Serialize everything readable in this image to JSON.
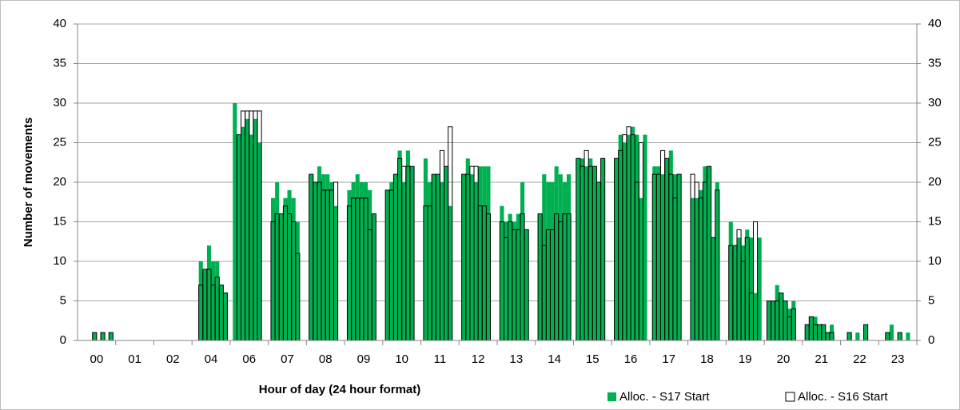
{
  "chart_data": {
    "type": "bar",
    "y_label": "Number of movements",
    "x_label": "Hour of day (24 hour format)",
    "categories": [
      "00",
      "01",
      "02",
      "04",
      "06",
      "07",
      "08",
      "09",
      "10",
      "11",
      "12",
      "13",
      "14",
      "15",
      "16",
      "17",
      "18",
      "19",
      "20",
      "21",
      "22",
      "23"
    ],
    "series": [
      {
        "name": "Alloc. - S17 Start",
        "color": "#00b050",
        "style": "filled",
        "values": [
          [
            null,
            null,
            null,
            1,
            null,
            1,
            null,
            1
          ],
          [
            null,
            null,
            null,
            null,
            null,
            null,
            null,
            null
          ],
          [
            null,
            null,
            null,
            null,
            null,
            null,
            null,
            null
          ],
          [
            null,
            10,
            9,
            12,
            10,
            10,
            7,
            6
          ],
          [
            30,
            26,
            27,
            28,
            26,
            28,
            25,
            null
          ],
          [
            18,
            20,
            16,
            18,
            19,
            18,
            15,
            null
          ],
          [
            21,
            20,
            22,
            21,
            21,
            20,
            17,
            null
          ],
          [
            19,
            20,
            21,
            20,
            20,
            19,
            16,
            null
          ],
          [
            19,
            20,
            21,
            24,
            20,
            24,
            22,
            null
          ],
          [
            23,
            20,
            21,
            21,
            20,
            22,
            17,
            null
          ],
          [
            21,
            23,
            21,
            20,
            22,
            22,
            22,
            null
          ],
          [
            17,
            15,
            16,
            15,
            16,
            20,
            14,
            null
          ],
          [
            16,
            21,
            20,
            20,
            22,
            21,
            20,
            21
          ],
          [
            23,
            23,
            22,
            23,
            22,
            20,
            23,
            null
          ],
          [
            23,
            26,
            25,
            26,
            27,
            26,
            18,
            26
          ],
          [
            22,
            22,
            21,
            23,
            24,
            21,
            21,
            null
          ],
          [
            18,
            18,
            19,
            22,
            22,
            13,
            20,
            null
          ],
          [
            15,
            12,
            13,
            12,
            14,
            13,
            6,
            13
          ],
          [
            5,
            5,
            7,
            6,
            5,
            4,
            5,
            null
          ],
          [
            2,
            3,
            3,
            2,
            2,
            1,
            2,
            null
          ],
          [
            null,
            1,
            null,
            1,
            null,
            2,
            null,
            null
          ],
          [
            null,
            1,
            2,
            null,
            1,
            null,
            1,
            null
          ]
        ]
      },
      {
        "name": "Alloc. - S16 Start",
        "color": "#000000",
        "style": "outline",
        "values": [
          [
            null,
            null,
            null,
            1,
            null,
            1,
            null,
            1
          ],
          [
            null,
            null,
            null,
            null,
            null,
            null,
            null,
            null
          ],
          [
            null,
            null,
            null,
            null,
            null,
            null,
            null,
            null
          ],
          [
            null,
            7,
            9,
            9,
            7,
            8,
            7,
            6
          ],
          [
            null,
            26,
            29,
            29,
            29,
            29,
            29,
            null
          ],
          [
            15,
            16,
            16,
            17,
            16,
            15,
            11,
            null
          ],
          [
            21,
            20,
            20,
            19,
            19,
            19,
            20,
            null
          ],
          [
            17,
            18,
            18,
            18,
            18,
            14,
            16,
            null
          ],
          [
            19,
            19,
            21,
            23,
            22,
            22,
            22,
            null
          ],
          [
            17,
            17,
            21,
            21,
            24,
            22,
            27,
            null
          ],
          [
            21,
            21,
            22,
            22,
            17,
            17,
            16,
            null
          ],
          [
            15,
            13,
            15,
            14,
            14,
            16,
            14,
            null
          ],
          [
            16,
            12,
            14,
            14,
            16,
            15,
            16,
            16
          ],
          [
            23,
            22,
            24,
            22,
            22,
            20,
            23,
            null
          ],
          [
            23,
            24,
            26,
            27,
            26,
            20,
            25,
            null
          ],
          [
            21,
            21,
            24,
            23,
            21,
            18,
            21,
            null
          ],
          [
            21,
            20,
            18,
            20,
            22,
            13,
            19,
            null
          ],
          [
            12,
            12,
            14,
            10,
            13,
            6,
            15,
            null
          ],
          [
            5,
            5,
            5,
            6,
            5,
            3,
            4,
            null
          ],
          [
            2,
            3,
            2,
            2,
            2,
            1,
            1,
            null
          ],
          [
            null,
            1,
            null,
            null,
            null,
            2,
            null,
            null
          ],
          [
            null,
            1,
            null,
            null,
            1,
            null,
            null,
            null
          ]
        ]
      }
    ],
    "ylim": [
      0,
      40
    ],
    "yticks": [
      0,
      5,
      10,
      15,
      20,
      25,
      30,
      35,
      40
    ],
    "grid": true,
    "legend": "bottom-right"
  }
}
